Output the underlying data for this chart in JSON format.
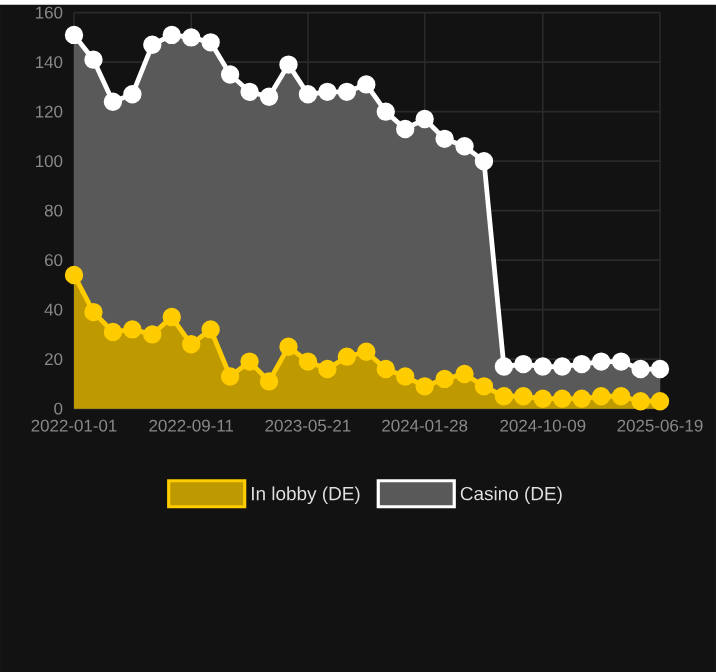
{
  "chart_data": {
    "type": "area",
    "x": [
      "2022-01-01",
      "2022-02-12",
      "2022-03-26",
      "2022-05-07",
      "2022-06-19",
      "2022-07-31",
      "2022-09-11",
      "2022-10-23",
      "2022-12-04",
      "2023-01-15",
      "2023-02-26",
      "2023-04-09",
      "2023-05-21",
      "2023-07-02",
      "2023-08-13",
      "2023-09-24",
      "2023-11-05",
      "2023-12-17",
      "2024-01-28",
      "2024-03-11",
      "2024-04-23",
      "2024-06-04",
      "2024-07-17",
      "2024-08-28",
      "2024-10-09",
      "2024-11-20",
      "2025-01-01",
      "2025-02-12",
      "2025-03-27",
      "2025-05-08",
      "2025-06-19"
    ],
    "series": [
      {
        "name": "In lobby (DE)",
        "color": "#ffcc00",
        "values": [
          54,
          39,
          31,
          32,
          30,
          37,
          26,
          32,
          13,
          19,
          11,
          25,
          19,
          16,
          21,
          23,
          16,
          13,
          9,
          12,
          14,
          9,
          5,
          5,
          4,
          4,
          4,
          5,
          5,
          3,
          3
        ]
      },
      {
        "name": "Casino (DE)",
        "color": "#ffffff",
        "values": [
          151,
          141,
          124,
          127,
          147,
          151,
          150,
          148,
          135,
          128,
          126,
          139,
          127,
          128,
          128,
          131,
          120,
          113,
          117,
          109,
          106,
          100,
          17,
          18,
          17,
          17,
          18,
          19,
          19,
          16,
          16
        ]
      }
    ],
    "xlim": [
      "2022-01-01",
      "2025-06-19"
    ],
    "xticks": [
      "2022-01-01",
      "2022-09-11",
      "2023-05-21",
      "2024-01-28",
      "2024-10-09",
      "2025-06-19"
    ],
    "ylim": [
      0,
      160
    ],
    "yticks": [
      0,
      20,
      40,
      60,
      80,
      100,
      120,
      140,
      160
    ],
    "grid": true,
    "legend": "bottom",
    "marker": "circle"
  }
}
